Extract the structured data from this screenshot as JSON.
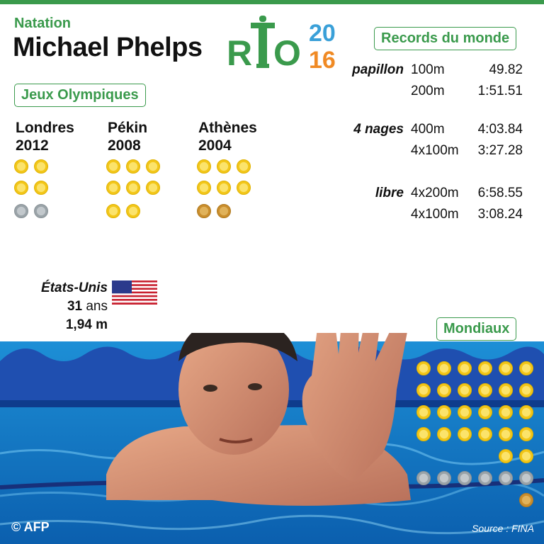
{
  "header": {
    "sport": "Natation",
    "athlete": "Michael Phelps",
    "logo": {
      "r": "R",
      "o": "O",
      "year_top": "20",
      "year_bottom": "16"
    }
  },
  "olympics": {
    "label": "Jeux Olympiques",
    "games": [
      {
        "city": "Londres",
        "year": "2012",
        "gold": 4,
        "silver": 2,
        "bronze": 0
      },
      {
        "city": "Pékin",
        "year": "2008",
        "gold": 8,
        "silver": 0,
        "bronze": 0
      },
      {
        "city": "Athènes",
        "year": "2004",
        "gold": 6,
        "silver": 0,
        "bronze": 2
      }
    ]
  },
  "records": {
    "label": "Records du monde",
    "rows": [
      {
        "style": "papillon",
        "distance": "100m",
        "time": "49.82"
      },
      {
        "style": "",
        "distance": "200m",
        "time": "1:51.51"
      },
      {
        "style": "4 nages",
        "distance": "400m",
        "time": "4:03.84"
      },
      {
        "style": "",
        "distance": "4x100m",
        "time": "3:27.28"
      },
      {
        "style": "libre",
        "distance": "4x200m",
        "time": "6:58.55"
      },
      {
        "style": "",
        "distance": "4x100m",
        "time": "3:08.24"
      }
    ]
  },
  "bio": {
    "country": "États-Unis",
    "age_value": "31",
    "age_unit": "ans",
    "height": "1,94 m"
  },
  "worlds": {
    "label": "Mondiaux",
    "gold": 26,
    "silver": 6,
    "bronze": 1
  },
  "footer": {
    "credit": "© AFP",
    "source": "Source : FINA"
  },
  "colors": {
    "accent_green": "#3a9a4c",
    "logo_blue": "#3aa0d8",
    "logo_orange": "#f08a24",
    "logo_green": "#3a9a4c",
    "gold": "#f2c619",
    "silver": "#9aa3a8",
    "bronze": "#c98d2c"
  }
}
